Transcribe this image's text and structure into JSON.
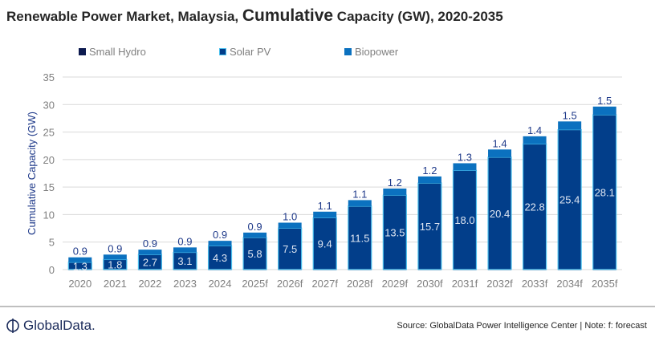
{
  "chart_data": {
    "type": "bar",
    "stacked": true,
    "title_parts": [
      "Renewable Power Market, Malaysia, ",
      "Cumulative",
      " Capacity (GW), 2020-2035"
    ],
    "ylabel": "Cumulative Capacity (GW)",
    "xlabel": "",
    "ylim": [
      0,
      35
    ],
    "yticks": [
      0,
      5,
      10,
      15,
      20,
      25,
      30,
      35
    ],
    "grid": true,
    "legend_position": "top",
    "categories": [
      "2020",
      "2021",
      "2022",
      "2023",
      "2024",
      "2025f",
      "2026f",
      "2027f",
      "2028f",
      "2029f",
      "2030f",
      "2031f",
      "2032f",
      "2033f",
      "2034f",
      "2035f"
    ],
    "series": [
      {
        "name": "Small Hydro",
        "color": "#0d1a4f",
        "values": [
          0.03,
          0.03,
          0.03,
          0.03,
          0.03,
          0.03,
          0.03,
          0.03,
          0.03,
          0.03,
          0.03,
          0.03,
          0.03,
          0.03,
          0.03,
          0.03
        ],
        "labeled": false
      },
      {
        "name": "Solar PV",
        "color": "#023e8a",
        "border": "#4bc0ee",
        "values": [
          1.3,
          1.8,
          2.7,
          3.1,
          4.3,
          5.8,
          7.5,
          9.4,
          11.5,
          13.5,
          15.7,
          18.0,
          20.4,
          22.8,
          25.4,
          28.1
        ],
        "labeled": true
      },
      {
        "name": "Biopower",
        "color": "#0b71bf",
        "values": [
          0.9,
          0.9,
          0.9,
          0.9,
          0.9,
          0.9,
          1.0,
          1.1,
          1.1,
          1.2,
          1.2,
          1.3,
          1.4,
          1.4,
          1.5,
          1.5
        ],
        "labeled": true
      }
    ]
  },
  "footer": {
    "logo_text": "GlobalData.",
    "source": "Source: GlobalData Power Intelligence Center | Note: f: forecast"
  }
}
